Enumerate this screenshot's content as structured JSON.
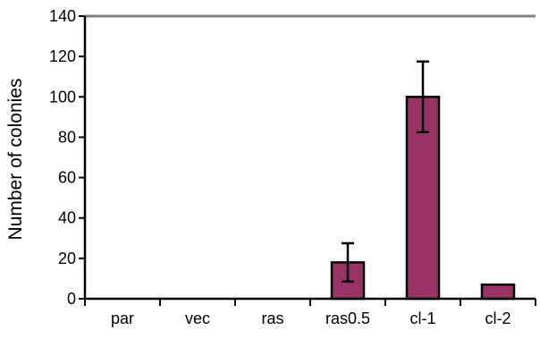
{
  "chart_data": {
    "type": "bar",
    "categories": [
      "par",
      "vec",
      "ras",
      "ras0.5",
      "cl-1",
      "cl-2"
    ],
    "values": [
      0,
      0,
      0,
      18,
      100,
      7
    ],
    "errors": [
      0,
      0,
      0,
      9.5,
      17.5,
      0
    ],
    "ylabel": "Number of colonies",
    "xlabel": "",
    "ylim": [
      0,
      140
    ],
    "yticks": [
      "0",
      "20",
      "40",
      "60",
      "80",
      "100",
      "120",
      "140"
    ],
    "bar_color": "#993366",
    "grid": false
  }
}
